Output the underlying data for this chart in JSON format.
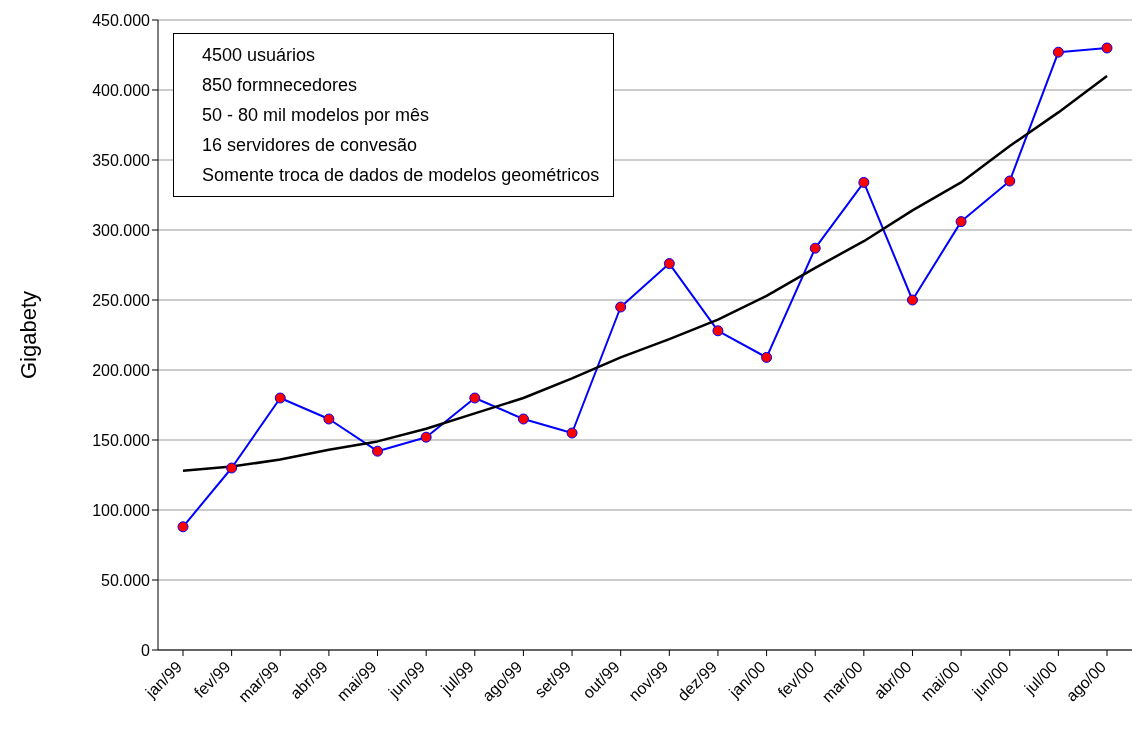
{
  "chart_data": {
    "type": "line",
    "ylabel": "Gigabety",
    "categories": [
      "jan/99",
      "fev/99",
      "mar/99",
      "abr/99",
      "mai/99",
      "jun/99",
      "jul/99",
      "ago/99",
      "set/99",
      "out/99",
      "nov/99",
      "dez/99",
      "jan/00",
      "fev/00",
      "mar/00",
      "abr/00",
      "mai/00",
      "jun/00",
      "jul/00",
      "ago/00"
    ],
    "series": [
      {
        "color": "#0000ff",
        "marker": "circle",
        "colors": [
          "#ff0000",
          "#ff0000",
          "#ff0000",
          "#ff0000",
          "#ff0000",
          "#ff0000",
          "#ff0000",
          "#ff0000",
          "#ff0000",
          "#ff0000",
          "#ff0000",
          "#ff0000",
          "#ff0000",
          "#ff0000",
          "#ff0000",
          "#ff0000",
          "#ff0000",
          "#ff0000",
          "#ff0000",
          "#ff0000"
        ],
        "values": [
          88000,
          130000,
          180000,
          165000,
          142000,
          152000,
          180000,
          165000,
          155000,
          245000,
          276000,
          228000,
          209000,
          287000,
          334000,
          250000,
          306000,
          335000,
          427000,
          430000
        ]
      },
      {
        "color": "#000000",
        "marker": "none",
        "values": [
          128000,
          131000,
          136000,
          143000,
          149000,
          158000,
          169000,
          180000,
          194000,
          209000,
          222000,
          236000,
          253000,
          273000,
          292000,
          314000,
          334000,
          360000,
          384000,
          410000
        ]
      }
    ],
    "ylim": [
      0,
      450000
    ],
    "yticks": [
      0,
      {
        "value": 50000,
        "label": "50.000"
      },
      {
        "value": 100000,
        "label": "100.000"
      },
      {
        "value": 150000,
        "label": "150.000"
      },
      {
        "value": 200000,
        "label": "200.000"
      },
      {
        "value": 250000,
        "label": "250.000"
      },
      {
        "value": 300000,
        "label": "300.000"
      },
      {
        "value": 350000,
        "label": "350.000"
      },
      {
        "value": 400000,
        "label": "400.000"
      },
      {
        "value": 450000,
        "label": "450.000"
      }
    ],
    "grid": "y",
    "legend": false,
    "annotations": [
      "4500 usuários",
      "850 formnecedores",
      "50 - 80 mil modelos por mês",
      "16 servidores de convesão",
      "Somente troca de dados de modelos geométricos"
    ]
  }
}
